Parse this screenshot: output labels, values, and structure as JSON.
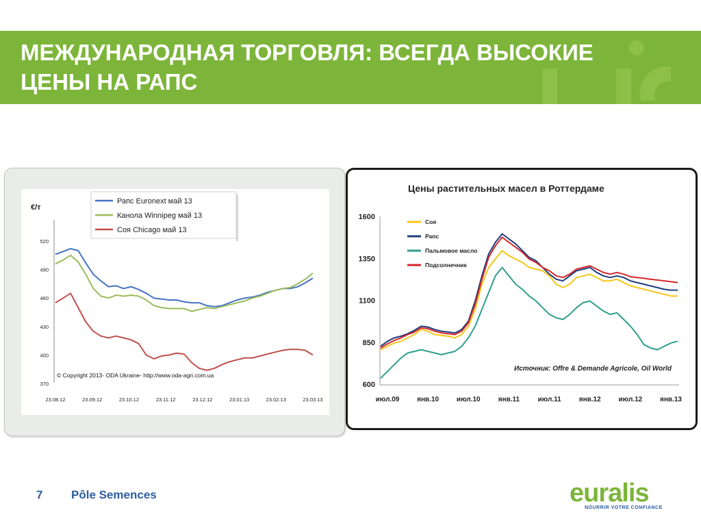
{
  "header": {
    "title_line1": "МЕЖДУНАРОДНАЯ ТОРГОВЛЯ: ВСЕГДА ВЫСОКИЕ",
    "title_line2": "ЦЕНЫ НА РАПС"
  },
  "footer": {
    "page_number": "7",
    "section": "Pôle Semences"
  },
  "logo": {
    "wordmark": "euralis",
    "tagline": "NOURRIR VOTRE CONFIANCE"
  },
  "colors": {
    "banner": "#7db53a",
    "footer_text": "#2a5da0"
  },
  "chart_data": [
    {
      "type": "line",
      "ylabel": "€/т",
      "ylim": [
        370,
        520
      ],
      "yticks": [
        "520",
        "490",
        "460",
        "430",
        "400",
        "370"
      ],
      "xticks": [
        "23.08.12",
        "23.09.12",
        "23.10.12",
        "23.11.12",
        "23.12.12",
        "23.01.13",
        "23.02.13",
        "23.03.13"
      ],
      "x_index_range": [
        0,
        34
      ],
      "legend_position": "top",
      "annotation": "© Copyright 2013- ODA Ukraine- http://www.oda-agri.com.ua",
      "series": [
        {
          "name": "Рапс Euronext май 13",
          "color": "#4472c4",
          "values": [
            506,
            509,
            512,
            510,
            497,
            485,
            478,
            472,
            473,
            470,
            472,
            469,
            465,
            460,
            459,
            458,
            458,
            456,
            455,
            455,
            452,
            451,
            452,
            455,
            458,
            460,
            461,
            463,
            466,
            468,
            470,
            470,
            472,
            476,
            481
          ]
        },
        {
          "name": "Канола Winnipeg май 13",
          "color": "#9bbb59",
          "values": [
            496,
            500,
            505,
            498,
            485,
            470,
            462,
            460,
            463,
            462,
            463,
            462,
            458,
            452,
            450,
            449,
            449,
            449,
            446,
            448,
            450,
            449,
            451,
            453,
            455,
            457,
            460,
            462,
            465,
            468,
            470,
            471,
            475,
            480,
            486
          ]
        },
        {
          "name": "Соя Chicago май 13",
          "color": "#c0504d",
          "values": [
            455,
            460,
            465,
            450,
            435,
            425,
            420,
            418,
            420,
            418,
            416,
            412,
            400,
            396,
            399,
            400,
            402,
            401,
            392,
            386,
            384,
            386,
            390,
            393,
            395,
            397,
            397,
            399,
            401,
            403,
            405,
            406,
            406,
            405,
            400
          ]
        }
      ]
    },
    {
      "type": "line",
      "title": "Цены растительных масел в Роттердаме",
      "ylim": [
        600,
        1600
      ],
      "yticks": [
        "1600",
        "1350",
        "1100",
        "850",
        "600"
      ],
      "xticks": [
        "июл.09",
        "янв.10",
        "июл.10",
        "янв.11",
        "июл.11",
        "янв.12",
        "июл.12",
        "янв.13"
      ],
      "x_index_range": [
        0,
        44
      ],
      "legend_position": "top-left",
      "annotation": "Источник: Offre & Demande Agricole, Oil World",
      "series": [
        {
          "name": "Соя",
          "color": "#f5c518",
          "values": [
            810,
            830,
            850,
            860,
            880,
            900,
            930,
            920,
            900,
            895,
            890,
            880,
            900,
            950,
            1050,
            1200,
            1300,
            1350,
            1400,
            1370,
            1350,
            1330,
            1300,
            1290,
            1280,
            1250,
            1200,
            1180,
            1200,
            1240,
            1250,
            1260,
            1240,
            1220,
            1220,
            1230,
            1210,
            1190,
            1180,
            1170,
            1160,
            1150,
            1140,
            1130,
            1130
          ]
        },
        {
          "name": "Рапс",
          "color": "#1f3d7a",
          "values": [
            830,
            860,
            880,
            890,
            905,
            925,
            950,
            945,
            930,
            920,
            915,
            910,
            930,
            980,
            1100,
            1250,
            1380,
            1450,
            1500,
            1470,
            1440,
            1400,
            1360,
            1340,
            1300,
            1260,
            1230,
            1220,
            1250,
            1280,
            1290,
            1300,
            1270,
            1250,
            1240,
            1250,
            1240,
            1220,
            1210,
            1200,
            1190,
            1180,
            1170,
            1165,
            1165
          ]
        },
        {
          "name": "Пальмовое масло",
          "color": "#2e9e8c",
          "values": [
            640,
            680,
            720,
            760,
            790,
            800,
            810,
            800,
            790,
            780,
            790,
            800,
            830,
            880,
            950,
            1050,
            1150,
            1250,
            1300,
            1250,
            1200,
            1170,
            1130,
            1100,
            1060,
            1020,
            1000,
            990,
            1020,
            1060,
            1090,
            1100,
            1070,
            1040,
            1020,
            1030,
            990,
            950,
            900,
            840,
            820,
            810,
            830,
            850,
            860
          ]
        },
        {
          "name": "Подсолнечник",
          "color": "#d7262b",
          "values": [
            820,
            845,
            865,
            880,
            900,
            915,
            940,
            935,
            920,
            910,
            905,
            900,
            920,
            970,
            1080,
            1230,
            1360,
            1430,
            1480,
            1450,
            1420,
            1390,
            1350,
            1330,
            1300,
            1280,
            1250,
            1240,
            1260,
            1290,
            1300,
            1310,
            1290,
            1270,
            1260,
            1270,
            1260,
            1245,
            1240,
            1235,
            1230,
            1225,
            1220,
            1215,
            1210
          ]
        }
      ]
    }
  ]
}
